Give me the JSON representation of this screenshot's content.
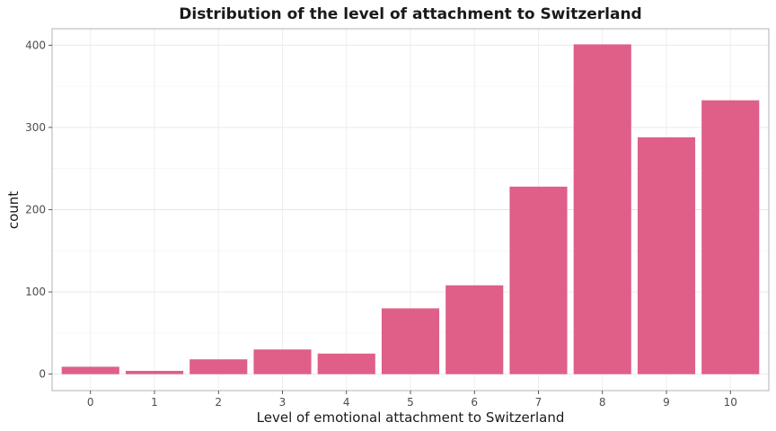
{
  "chart_data": {
    "type": "bar",
    "title": "Distribution of the level of attachment to Switzerland",
    "xlabel": "Level of emotional attachment to Switzerland",
    "ylabel": "count",
    "categories": [
      "0",
      "1",
      "2",
      "3",
      "4",
      "5",
      "6",
      "7",
      "8",
      "9",
      "10"
    ],
    "values": [
      9,
      4,
      18,
      30,
      25,
      80,
      108,
      228,
      401,
      288,
      333
    ],
    "ylim": [
      -20,
      420
    ],
    "yticks": [
      "0",
      "100",
      "200",
      "300",
      "400"
    ],
    "grid": true,
    "legend": "none",
    "bar_color": "#df5f89"
  }
}
